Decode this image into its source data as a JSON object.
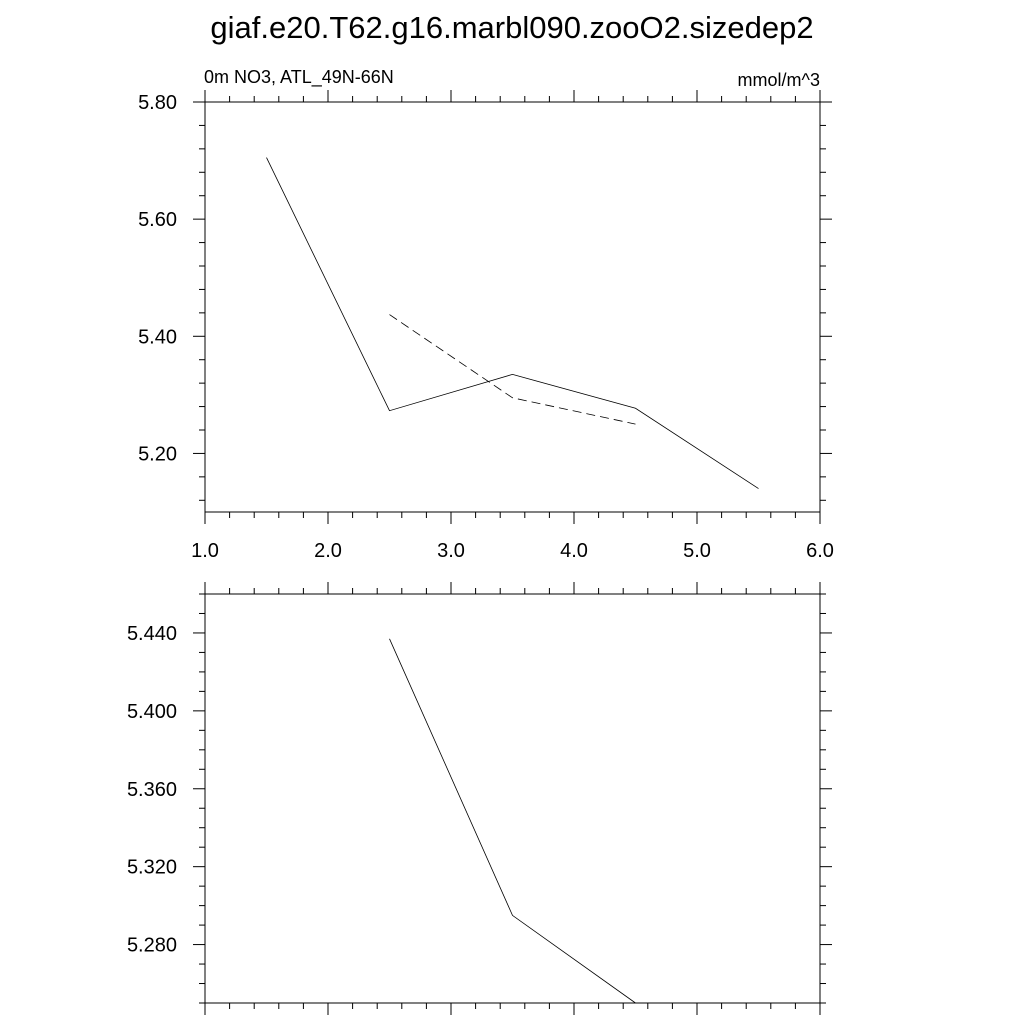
{
  "figure_title": "giaf.e20.T62.g16.marbl090.zooO2.sizedep2",
  "chart_data": [
    {
      "type": "line",
      "left_label": "0m NO3, ATL_49N-66N",
      "right_label": "mmol/m^3",
      "xlim": [
        1.0,
        6.0
      ],
      "ylim": [
        5.1,
        5.8
      ],
      "x_ticks": [
        1.0,
        2.0,
        3.0,
        4.0,
        5.0,
        6.0
      ],
      "x_tick_labels": [
        "1.0",
        "2.0",
        "3.0",
        "4.0",
        "5.0",
        "6.0"
      ],
      "y_ticks": [
        5.2,
        5.4,
        5.6,
        5.8
      ],
      "y_tick_labels": [
        "5.20",
        "5.40",
        "5.60",
        "5.80"
      ],
      "grid": false,
      "series": [
        {
          "x": [
            1.5,
            2.5,
            3.5,
            4.5,
            5.5
          ],
          "y": [
            5.705,
            5.273,
            5.335,
            5.277,
            5.14
          ],
          "style": "solid"
        },
        {
          "x": [
            2.5,
            3.5,
            4.5
          ],
          "y": [
            5.437,
            5.295,
            5.25
          ],
          "style": "dashed"
        }
      ]
    },
    {
      "type": "line",
      "xlim": [
        1.0,
        6.0
      ],
      "ylim": [
        5.25,
        5.46
      ],
      "x_ticks": [
        1.0,
        2.0,
        3.0,
        4.0,
        5.0,
        6.0
      ],
      "y_ticks": [
        5.28,
        5.32,
        5.36,
        5.4,
        5.44
      ],
      "y_tick_labels": [
        "5.280",
        "5.320",
        "5.360",
        "5.400",
        "5.440"
      ],
      "grid": false,
      "series": [
        {
          "x": [
            2.5,
            3.5,
            4.5
          ],
          "y": [
            5.437,
            5.295,
            5.25
          ],
          "style": "solid"
        }
      ]
    }
  ]
}
